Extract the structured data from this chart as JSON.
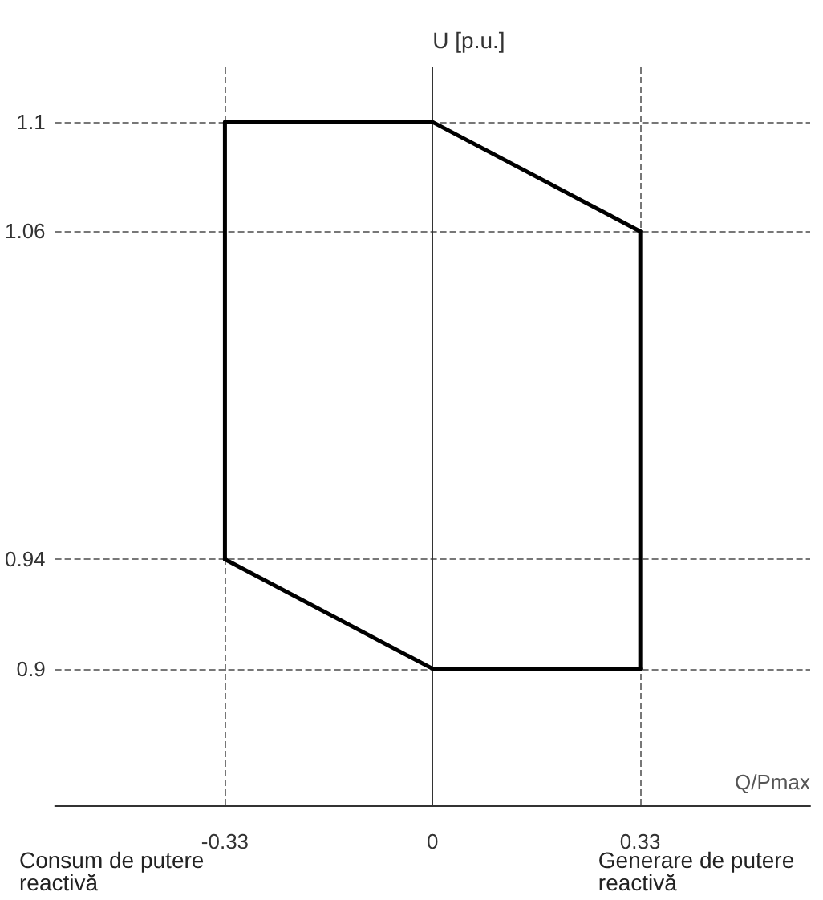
{
  "chart_data": {
    "type": "line",
    "xlabel": "Q/Pmax",
    "ylabel": "U [p.u.]",
    "series": [
      {
        "color": "#000000",
        "x": [
          -0.33,
          0,
          0.33
        ],
        "values": [
          1.1,
          1.1,
          1.06
        ]
      },
      {
        "color": "#000000",
        "x": [
          -0.33,
          0,
          0.33
        ],
        "values": [
          0.94,
          0.9,
          0.9
        ]
      },
      {
        "color": "#000000",
        "x": [
          -0.33,
          -0.33
        ],
        "values": [
          0.94,
          1.1
        ]
      },
      {
        "color": "#000000",
        "x": [
          0.33,
          0.33
        ],
        "values": [
          0.9,
          1.06
        ]
      }
    ],
    "xlim": [
      -0.6,
      0.6
    ],
    "xticks": [
      -0.33,
      0,
      0.33
    ],
    "ylim": [
      0.85,
      1.12
    ],
    "yticks": [
      0.9,
      0.94,
      1.06,
      1.1
    ],
    "grid": true,
    "marker": "none",
    "line_style": "solid",
    "annotations": [
      "Consum de putere reactivă",
      "Generare de putere reactivă"
    ]
  }
}
